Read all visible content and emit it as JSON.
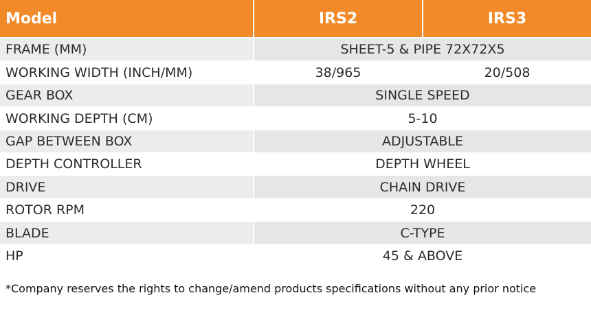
{
  "table": {
    "header": [
      "Model",
      "IRS2",
      "IRS3"
    ],
    "rows": [
      [
        "FRAME (MM)",
        "SHEET-5 & PIPE 72X72X5"
      ],
      [
        "WORKING WIDTH (INCH/MM)",
        "38/965",
        "20/508"
      ],
      [
        "GEAR BOX",
        "SINGLE SPEED"
      ],
      [
        "WORKING DEPTH (CM)",
        "5-10"
      ],
      [
        "GAP BETWEEN BOX",
        "ADJUSTABLE"
      ],
      [
        "DEPTH CONTROLLER",
        "DEPTH WHEEL"
      ],
      [
        "DRIVE",
        "CHAIN DRIVE"
      ],
      [
        "ROTOR RPM",
        "220"
      ],
      [
        "BLADE",
        "C-TYPE"
      ],
      [
        "HP",
        "45 & ABOVE"
      ]
    ]
  },
  "footnote": "*Company reserves the rights to change/amend products specifications without any prior notice"
}
